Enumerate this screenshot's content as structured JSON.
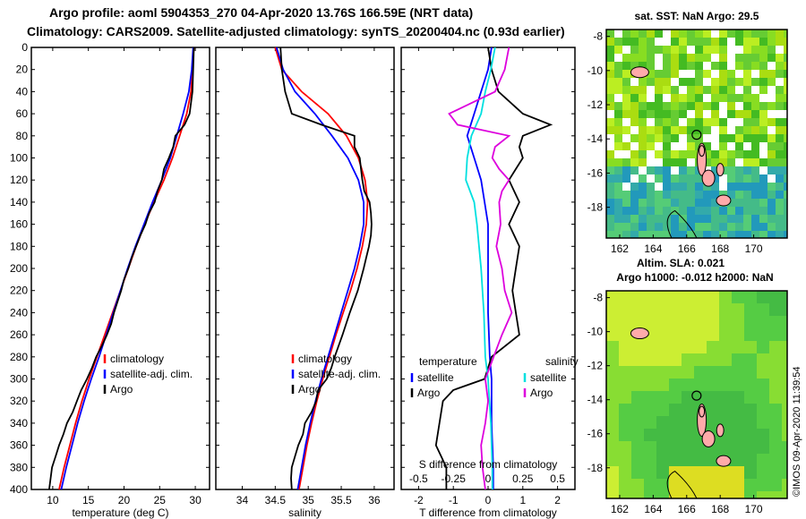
{
  "titles": {
    "line1": "Argo profile: aoml 5904353_270 04-Apr-2020 13.76S 166.59E (NRT data)",
    "line2": "Climatology: CARS2009. Satellite-adjusted climatology: synTS_20200404.nc (0.93d earlier)"
  },
  "colors": {
    "climatology": "#ff0000",
    "satellite": "#0000ff",
    "argo": "#000000",
    "sal_satellite": "#00e0e0",
    "sal_argo": "#dd00dd"
  },
  "chart_data": [
    {
      "type": "line",
      "id": "temperature",
      "xlabel": "temperature (deg C)",
      "ylabel": "",
      "xlim": [
        7,
        32
      ],
      "ylim": [
        400,
        0
      ],
      "x_ticks": [
        10,
        15,
        20,
        25,
        30
      ],
      "y_ticks": [
        0,
        20,
        40,
        60,
        80,
        100,
        120,
        140,
        160,
        180,
        200,
        220,
        240,
        260,
        280,
        300,
        320,
        340,
        360,
        380,
        400
      ],
      "legend": [
        "climatology",
        "satellite-adj. clim.",
        "Argo"
      ],
      "series": [
        {
          "name": "climatology",
          "depth": [
            0,
            20,
            40,
            60,
            80,
            100,
            120,
            140,
            160,
            180,
            200,
            220,
            240,
            260,
            280,
            300,
            320,
            340,
            360,
            380,
            400
          ],
          "values": [
            29.8,
            29.6,
            29.4,
            28.8,
            27.8,
            26.8,
            25.6,
            24.2,
            22.9,
            21.7,
            20.6,
            19.5,
            18.4,
            17.3,
            16.2,
            15.1,
            14.1,
            13.2,
            12.4,
            11.6,
            10.9
          ]
        },
        {
          "name": "satellite-adj. clim.",
          "depth": [
            0,
            20,
            40,
            60,
            80,
            100,
            120,
            140,
            160,
            180,
            200,
            220,
            240,
            260,
            280,
            300,
            320,
            340,
            360,
            380,
            400
          ],
          "values": [
            29.7,
            29.5,
            29.1,
            28.3,
            27.4,
            26.5,
            25.3,
            24.0,
            22.8,
            21.6,
            20.5,
            19.5,
            18.5,
            17.5,
            16.5,
            15.4,
            14.4,
            13.5,
            12.7,
            11.9,
            11.2
          ]
        },
        {
          "name": "Argo",
          "depth": [
            0,
            20,
            40,
            60,
            70,
            80,
            90,
            100,
            110,
            120,
            130,
            140,
            150,
            160,
            170,
            180,
            190,
            200,
            210,
            220,
            230,
            240,
            250,
            260,
            270,
            280,
            290,
            300,
            310,
            320,
            330,
            340,
            350,
            360,
            370,
            380,
            390,
            400
          ],
          "values": [
            29.8,
            29.7,
            29.6,
            29.2,
            28.5,
            27.2,
            26.9,
            26.3,
            25.6,
            25.3,
            24.7,
            24.3,
            23.5,
            23.0,
            22.3,
            21.7,
            21.1,
            20.6,
            20.0,
            19.6,
            19.1,
            18.6,
            18.2,
            17.6,
            16.9,
            16.1,
            15.5,
            14.8,
            14.0,
            13.4,
            12.8,
            12.0,
            11.5,
            10.9,
            10.4,
            9.9,
            9.7,
            9.5
          ]
        }
      ]
    },
    {
      "type": "line",
      "id": "salinity",
      "xlabel": "salinity",
      "xlim": [
        33.6,
        36.3
      ],
      "ylim": [
        400,
        0
      ],
      "x_ticks": [
        34,
        34.5,
        35,
        35.5,
        36
      ],
      "legend": [
        "climatology",
        "satellite-adj. clim.",
        "Argo"
      ],
      "series": [
        {
          "name": "climatology",
          "depth": [
            0,
            20,
            40,
            60,
            80,
            100,
            120,
            140,
            160,
            180,
            200,
            220,
            240,
            260,
            280,
            300,
            320,
            340,
            360,
            380,
            400
          ],
          "values": [
            34.5,
            34.6,
            34.9,
            35.3,
            35.58,
            35.76,
            35.86,
            35.9,
            35.88,
            35.82,
            35.74,
            35.64,
            35.53,
            35.42,
            35.32,
            35.22,
            35.13,
            35.05,
            34.98,
            34.92,
            34.86
          ]
        },
        {
          "name": "satellite-adj. clim.",
          "depth": [
            0,
            20,
            40,
            60,
            80,
            100,
            120,
            140,
            160,
            180,
            200,
            220,
            240,
            260,
            280,
            300,
            320,
            340,
            360,
            380,
            400
          ],
          "values": [
            34.52,
            34.62,
            34.8,
            35.1,
            35.36,
            35.6,
            35.76,
            35.84,
            35.84,
            35.78,
            35.7,
            35.6,
            35.5,
            35.4,
            35.3,
            35.2,
            35.11,
            35.03,
            34.96,
            34.9,
            34.84
          ]
        },
        {
          "name": "Argo",
          "depth": [
            0,
            20,
            40,
            60,
            70,
            80,
            90,
            100,
            110,
            120,
            130,
            140,
            150,
            160,
            170,
            180,
            190,
            200,
            220,
            240,
            260,
            280,
            290,
            300,
            310,
            320,
            330,
            340,
            350,
            360,
            370,
            380,
            390,
            400
          ],
          "values": [
            34.58,
            34.6,
            34.65,
            34.75,
            35.2,
            35.7,
            35.7,
            35.78,
            35.8,
            35.82,
            35.85,
            35.93,
            35.95,
            35.96,
            35.95,
            35.92,
            35.88,
            35.84,
            35.75,
            35.63,
            35.52,
            35.4,
            35.35,
            35.28,
            35.15,
            35.12,
            35.05,
            34.95,
            34.92,
            34.85,
            34.8,
            34.75,
            34.74,
            34.75
          ]
        }
      ]
    },
    {
      "type": "line",
      "id": "differences",
      "xlabel": "T difference from climatology",
      "xlabel_top": "S difference from climatology",
      "xlim": [
        -2.5,
        2.5
      ],
      "ylim": [
        400,
        0
      ],
      "x_ticks": [
        -2,
        -1,
        0,
        1,
        2
      ],
      "x_ticks_sal": [
        -0.5,
        -0.25,
        0,
        0.25,
        0.5
      ],
      "legend_temperature": {
        "title": "temperature",
        "items": [
          "satellite",
          "Argo"
        ]
      },
      "legend_salinity": {
        "title": "salinity",
        "items": [
          "satellite",
          "Argo"
        ]
      },
      "series": [
        {
          "name": "temperature satellite",
          "axis": "T",
          "depth": [
            0,
            20,
            40,
            60,
            80,
            100,
            120,
            140,
            160,
            200,
            240,
            280,
            300,
            340,
            380,
            400
          ],
          "values": [
            0.1,
            0.0,
            -0.2,
            -0.4,
            -0.6,
            -0.4,
            -0.2,
            -0.1,
            0.0,
            0.0,
            0.0,
            0.05,
            0.1,
            0.1,
            0.15,
            0.15
          ]
        },
        {
          "name": "temperature Argo",
          "axis": "T",
          "depth": [
            0,
            20,
            40,
            60,
            70,
            80,
            90,
            100,
            110,
            120,
            140,
            160,
            180,
            200,
            220,
            240,
            260,
            280,
            300,
            310,
            320,
            340,
            360,
            380,
            400
          ],
          "values": [
            0.0,
            0.1,
            0.3,
            1.0,
            1.8,
            1.0,
            0.9,
            1.0,
            0.8,
            0.6,
            0.9,
            0.6,
            0.9,
            0.8,
            0.7,
            0.8,
            0.9,
            0.1,
            -0.1,
            -1.0,
            -1.3,
            -1.4,
            -1.5,
            -1.2,
            -1.2
          ]
        },
        {
          "name": "salinity satellite",
          "axis": "S",
          "depth": [
            0,
            20,
            40,
            60,
            80,
            100,
            120,
            140,
            160,
            200,
            240,
            280,
            300,
            340,
            380,
            400
          ],
          "values": [
            0.05,
            0.02,
            -0.02,
            -0.05,
            -0.12,
            -0.15,
            -0.16,
            -0.1,
            -0.08,
            -0.05,
            -0.03,
            -0.02,
            0.0,
            0.02,
            0.03,
            0.03
          ]
        },
        {
          "name": "salinity Argo",
          "axis": "S",
          "depth": [
            0,
            20,
            40,
            60,
            70,
            80,
            90,
            100,
            110,
            120,
            130,
            140,
            160,
            180,
            200,
            220,
            240,
            260,
            280,
            300,
            320,
            340,
            360,
            380,
            400
          ],
          "values": [
            0.15,
            0.12,
            0.05,
            -0.28,
            -0.22,
            0.15,
            0.05,
            0.03,
            0.08,
            0.15,
            0.1,
            0.08,
            0.09,
            0.06,
            0.1,
            0.12,
            0.17,
            0.1,
            0.04,
            -0.02,
            0.0,
            -0.02,
            -0.05,
            -0.04,
            -0.02
          ]
        }
      ]
    },
    {
      "type": "heatmap",
      "id": "sst-map",
      "title": "sat. SST: NaN Argo: 29.5",
      "x_ticks": [
        162,
        164,
        166,
        168,
        170
      ],
      "y_ticks": [
        -8,
        -10,
        -12,
        -14,
        -16,
        -18
      ],
      "xlim": [
        161.2,
        172
      ],
      "ylim": [
        -19.8,
        -7.6
      ],
      "argo_position": {
        "lon": 166.59,
        "lat": -13.76
      }
    },
    {
      "type": "heatmap",
      "id": "sla-map",
      "title_line1": "Altim. SLA: 0.021",
      "title_line2": "Argo h1000: -0.012 h2000: NaN",
      "x_ticks": [
        162,
        164,
        166,
        168,
        170
      ],
      "y_ticks": [
        -8,
        -10,
        -12,
        -14,
        -16,
        -18
      ],
      "xlim": [
        161.2,
        172
      ],
      "ylim": [
        -19.8,
        -7.6
      ],
      "argo_position": {
        "lon": 166.59,
        "lat": -13.76
      }
    }
  ],
  "credit": "©IMOS 09-Apr-2020 11:39:54"
}
